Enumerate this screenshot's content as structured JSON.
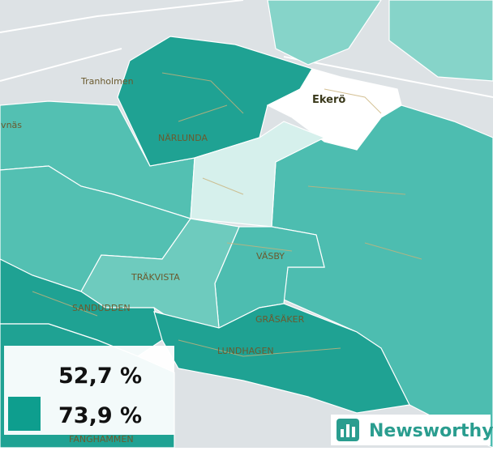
{
  "map": {
    "places": [
      "Tranholmen",
      "Ekerö",
      "NÄRLUNDA",
      "TRÄKVISTA",
      "VÄSBY",
      "SANDUDDEN",
      "GRÅSÄKER",
      "LUNDHAGEN",
      "lvnäs",
      "FANGHAMMEN"
    ]
  },
  "legend": {
    "items": [
      "52,7 %",
      "73,9 %"
    ]
  },
  "logo": {
    "text": "Newsworthy"
  }
}
